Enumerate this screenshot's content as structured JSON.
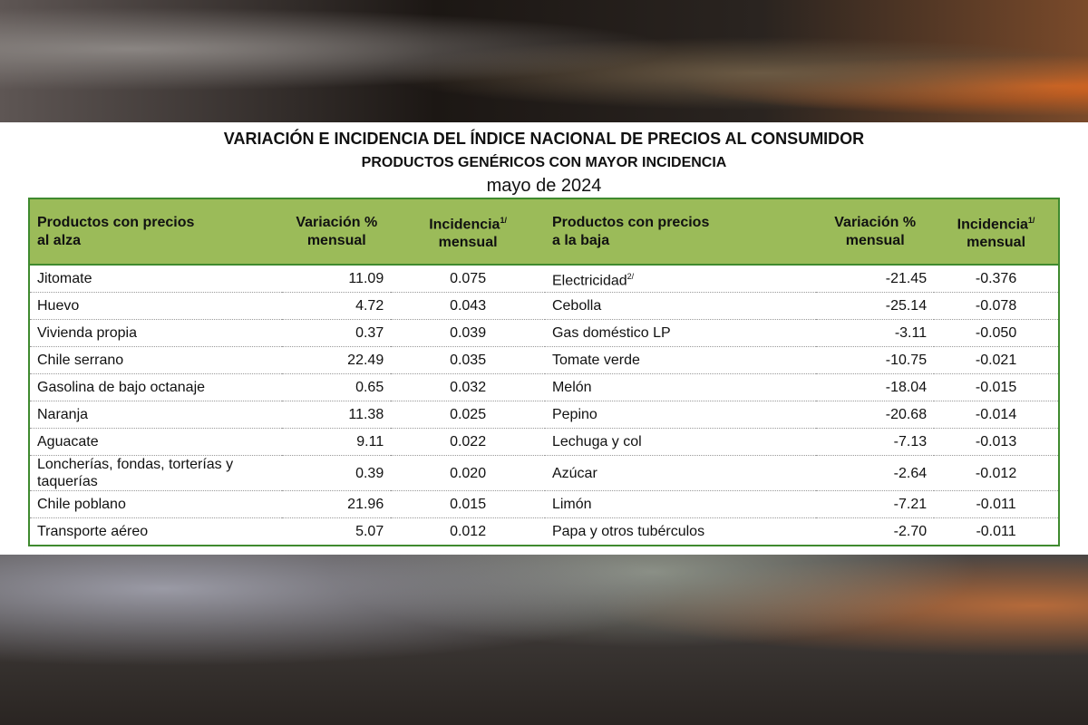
{
  "header": {
    "title": "VARIACIÓN E INCIDENCIA DEL ÍNDICE NACIONAL DE PRECIOS AL CONSUMIDOR",
    "subtitle": "PRODUCTOS GENÉRICOS CON MAYOR INCIDENCIA",
    "date": "mayo de 2024"
  },
  "table": {
    "columns": [
      {
        "lines": [
          "Productos con precios",
          "al alza"
        ]
      },
      {
        "lines": [
          "Variación %",
          "mensual"
        ]
      },
      {
        "lines": [
          "Incidencia",
          "mensual"
        ],
        "sup": "1/"
      },
      {
        "lines": [
          "Productos con precios",
          "a la baja"
        ]
      },
      {
        "lines": [
          "Variación %",
          "mensual"
        ]
      },
      {
        "lines": [
          "Incidencia",
          "mensual"
        ],
        "sup": "1/"
      }
    ],
    "rows": [
      [
        "Jitomate",
        "11.09",
        "0.075",
        {
          "text": "Electricidad",
          "sup": "2/"
        },
        "-21.45",
        "-0.376"
      ],
      [
        "Huevo",
        "4.72",
        "0.043",
        "Cebolla",
        "-25.14",
        "-0.078"
      ],
      [
        "Vivienda propia",
        "0.37",
        "0.039",
        "Gas doméstico LP",
        "-3.11",
        "-0.050"
      ],
      [
        "Chile serrano",
        "22.49",
        "0.035",
        "Tomate verde",
        "-10.75",
        "-0.021"
      ],
      [
        "Gasolina de bajo octanaje",
        "0.65",
        "0.032",
        "Melón",
        "-18.04",
        "-0.015"
      ],
      [
        "Naranja",
        "11.38",
        "0.025",
        "Pepino",
        "-20.68",
        "-0.014"
      ],
      [
        "Aguacate",
        "9.11",
        "0.022",
        "Lechuga y col",
        "-7.13",
        "-0.013"
      ],
      [
        "Loncherías, fondas, torterías y taquerías",
        "0.39",
        "0.020",
        "Azúcar",
        "-2.64",
        "-0.012"
      ],
      [
        "Chile poblano",
        "21.96",
        "0.015",
        "Limón",
        "-7.21",
        "-0.011"
      ],
      [
        "Transporte aéreo",
        "5.07",
        "0.012",
        "Papa y otros tubérculos",
        "-2.70",
        "-0.011"
      ]
    ]
  }
}
